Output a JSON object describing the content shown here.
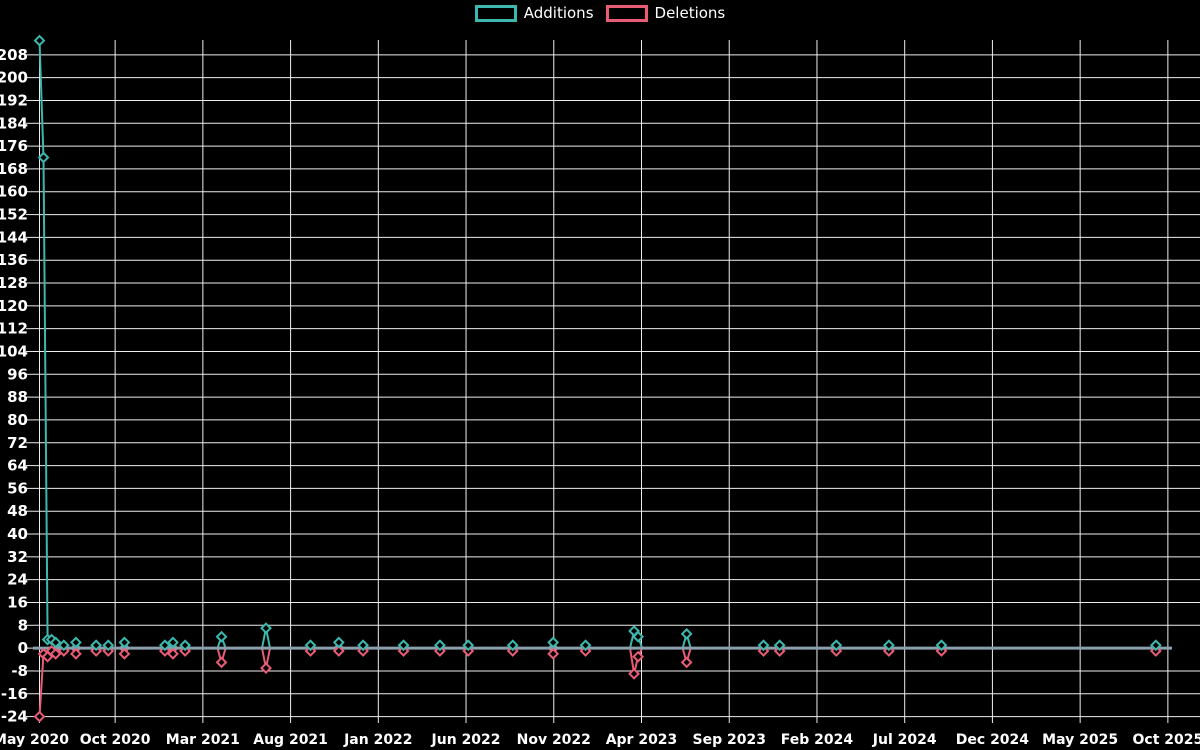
{
  "legend": {
    "items": [
      {
        "label": "Additions",
        "color": "#3db8ae"
      },
      {
        "label": "Deletions",
        "color": "#e85d75"
      }
    ]
  },
  "colors": {
    "background": "#000000",
    "grid": "#eeeeee",
    "zero_line": "#8c9fad",
    "text": "#ffffff",
    "additions": "#3db8ae",
    "deletions": "#e85d75"
  },
  "chart_data": {
    "type": "line",
    "title": "",
    "xlabel": "",
    "ylabel": "",
    "legend_position": "top-center",
    "grid": true,
    "marker_style": "open-diamond",
    "x_axis": {
      "unit": "week",
      "total_weeks": 281,
      "tick_labels": [
        "May 2020",
        "Oct 2020",
        "Mar 2021",
        "Aug 2021",
        "Jan 2022",
        "Jun 2022",
        "Nov 2022",
        "Apr 2023",
        "Sep 2023",
        "Feb 2024",
        "Jul 2024",
        "Dec 2024",
        "May 2025",
        "Oct 2025"
      ],
      "tick_week_positions": [
        0,
        18.7,
        40.39,
        62.08,
        83.77,
        105.46,
        127.15,
        148.84,
        170.53,
        192.22,
        213.91,
        235.6,
        257.29,
        278.98
      ]
    },
    "y_axis": {
      "tick_labels": [
        -24,
        -16,
        -8,
        0,
        8,
        16,
        24,
        32,
        40,
        48,
        56,
        64,
        72,
        80,
        88,
        96,
        104,
        112,
        120,
        128,
        136,
        144,
        152,
        160,
        168,
        176,
        184,
        192,
        200,
        208
      ],
      "tick_step": 8,
      "ylim": [
        -25.2,
        213.2
      ]
    },
    "series": [
      {
        "name": "Additions",
        "color": "#3db8ae",
        "default_value": 0,
        "nonzero_points": [
          [
            0,
            213
          ],
          [
            1,
            172
          ],
          [
            2,
            3
          ],
          [
            3,
            3
          ],
          [
            4,
            2
          ],
          [
            6,
            1
          ],
          [
            9,
            2
          ],
          [
            14,
            1
          ],
          [
            17,
            1
          ],
          [
            21,
            2
          ],
          [
            31,
            1
          ],
          [
            33,
            2
          ],
          [
            36,
            1
          ],
          [
            45,
            4
          ],
          [
            56,
            7
          ],
          [
            67,
            1
          ],
          [
            74,
            2
          ],
          [
            80,
            1
          ],
          [
            90,
            1
          ],
          [
            99,
            1
          ],
          [
            106,
            1
          ],
          [
            117,
            1
          ],
          [
            127,
            2
          ],
          [
            135,
            1
          ],
          [
            147,
            6
          ],
          [
            148,
            4
          ],
          [
            160,
            5
          ],
          [
            179,
            1
          ],
          [
            183,
            1
          ],
          [
            197,
            1
          ],
          [
            210,
            1
          ],
          [
            223,
            1
          ],
          [
            276,
            1
          ]
        ]
      },
      {
        "name": "Deletions",
        "color": "#e85d75",
        "default_value": 0,
        "nonzero_points": [
          [
            0,
            -24
          ],
          [
            1,
            -2
          ],
          [
            2,
            -3
          ],
          [
            3,
            -1
          ],
          [
            4,
            -2
          ],
          [
            6,
            -1
          ],
          [
            9,
            -2
          ],
          [
            14,
            -1
          ],
          [
            17,
            -1
          ],
          [
            21,
            -2
          ],
          [
            31,
            -1
          ],
          [
            33,
            -2
          ],
          [
            36,
            -1
          ],
          [
            45,
            -5
          ],
          [
            56,
            -7
          ],
          [
            67,
            -1
          ],
          [
            74,
            -1
          ],
          [
            80,
            -1
          ],
          [
            90,
            -1
          ],
          [
            99,
            -1
          ],
          [
            106,
            -1
          ],
          [
            117,
            -1
          ],
          [
            127,
            -2
          ],
          [
            135,
            -1
          ],
          [
            147,
            -9
          ],
          [
            148,
            -3
          ],
          [
            160,
            -5
          ],
          [
            179,
            -1
          ],
          [
            183,
            -1
          ],
          [
            197,
            -1
          ],
          [
            210,
            -1
          ],
          [
            223,
            -1
          ],
          [
            276,
            -1
          ]
        ]
      }
    ]
  }
}
